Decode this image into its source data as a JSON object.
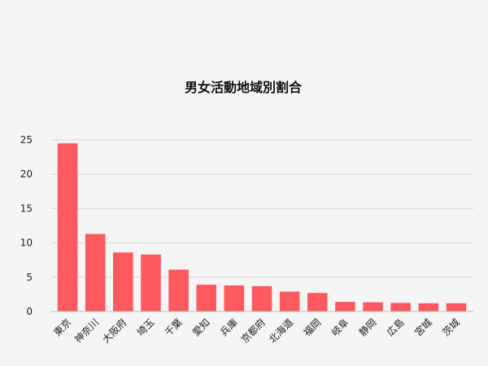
{
  "chart_data": {
    "type": "bar",
    "title": "男女活動地域別割合",
    "xlabel": "",
    "ylabel": "",
    "categories": [
      "東京",
      "神奈川",
      "大阪府",
      "埼玉",
      "千葉",
      "愛知",
      "兵庫",
      "京都府",
      "北海道",
      "福岡",
      "岐阜",
      "静岡",
      "広島",
      "宮城",
      "茨城"
    ],
    "values": [
      24.5,
      11.3,
      8.6,
      8.3,
      6.1,
      3.9,
      3.8,
      3.7,
      2.9,
      2.7,
      1.4,
      1.35,
      1.25,
      1.2,
      1.2
    ],
    "yticks": [
      0,
      5,
      10,
      15,
      20,
      25
    ],
    "ylim": [
      0,
      25
    ],
    "grid": true,
    "legend": "none",
    "bar_color": "#ff5a5f"
  }
}
